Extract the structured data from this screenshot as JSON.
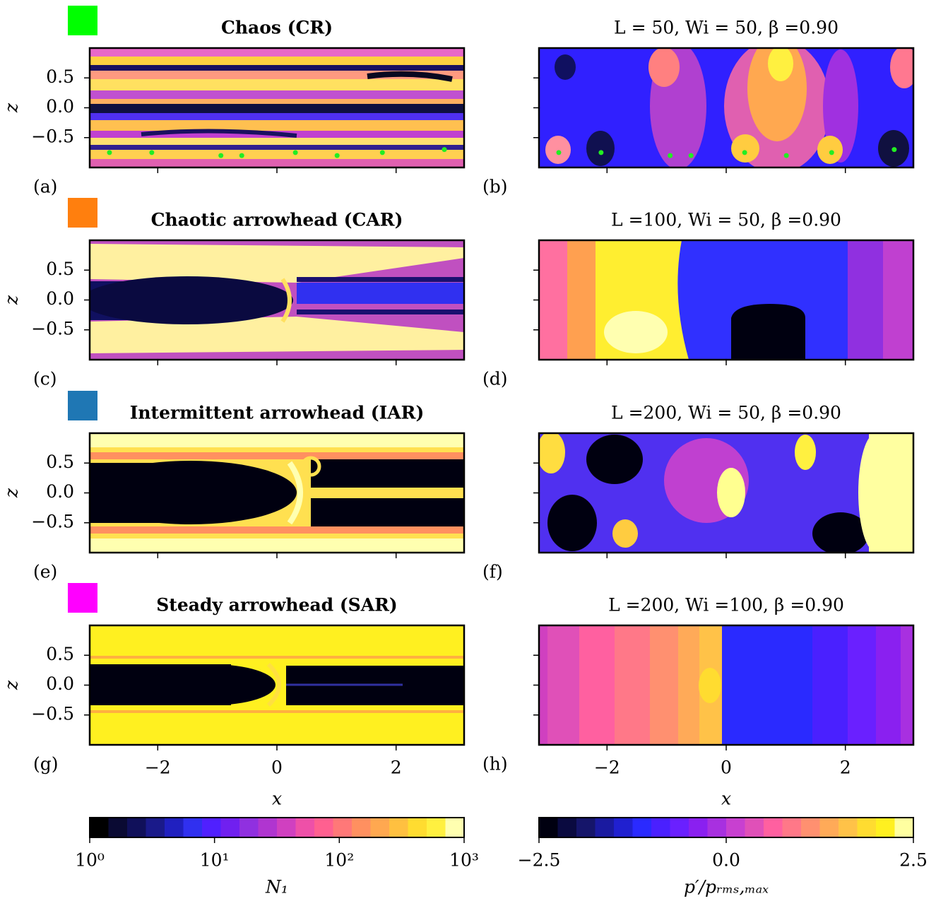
{
  "chart_data": [
    {
      "type": "contour",
      "title": "Chaos (CR)",
      "label": "(a)",
      "regime_color": "#00ff00",
      "ylabel": "z",
      "xlim": [
        -3.1416,
        3.1416
      ],
      "ylim": [
        -1,
        1
      ],
      "xticks": [
        {
          "value": -2,
          "label": "−2"
        },
        0,
        2
      ],
      "yticks": [
        {
          "value": -0.5,
          "label": "−0.5"
        },
        {
          "value": 0,
          "label": "0.0"
        },
        0.5
      ],
      "xtick_labels": false,
      "ytick_labels": true,
      "points": {
        "x": [
          -2.81,
          -2.1,
          -0.94,
          -0.59,
          0.31,
          1.01,
          1.77,
          2.81
        ],
        "y": [
          -0.75,
          -0.75,
          -0.8,
          -0.8,
          -0.75,
          -0.8,
          -0.75,
          -0.7
        ],
        "color": "#22ee22"
      }
    },
    {
      "type": "contour",
      "title": "L = 50, Wi = 50, β =0.90",
      "label": "(b)",
      "xlim": [
        -3.1416,
        3.1416
      ],
      "ylim": [
        -1,
        1
      ],
      "xticks": [
        {
          "value": -2,
          "label": "−2"
        },
        0,
        2
      ],
      "yticks": [
        {
          "value": -0.5,
          "label": "−0.5"
        },
        {
          "value": 0,
          "label": "0.0"
        },
        0.5
      ],
      "xtick_labels": false,
      "ytick_labels": false,
      "points": {
        "x": [
          -2.81,
          -2.1,
          -0.94,
          -0.59,
          0.31,
          1.01,
          1.77,
          2.82
        ],
        "y": [
          -0.75,
          -0.75,
          -0.8,
          -0.8,
          -0.75,
          -0.8,
          -0.75,
          -0.7
        ],
        "color": "#22ee22"
      }
    },
    {
      "type": "contour",
      "title": "Chaotic arrowhead (CAR)",
      "label": "(c)",
      "regime_color": "#ff7f0e",
      "ylabel": "z",
      "xlim": [
        -3.1416,
        3.1416
      ],
      "ylim": [
        -1,
        1
      ],
      "xticks": [
        {
          "value": -2,
          "label": "−2"
        },
        0,
        2
      ],
      "yticks": [
        {
          "value": -0.5,
          "label": "−0.5"
        },
        {
          "value": 0,
          "label": "0.0"
        },
        0.5
      ],
      "xtick_labels": false,
      "ytick_labels": true
    },
    {
      "type": "contour",
      "title": "L =100, Wi = 50, β =0.90",
      "label": "(d)",
      "xlim": [
        -3.1416,
        3.1416
      ],
      "ylim": [
        -1,
        1
      ],
      "xticks": [
        {
          "value": -2,
          "label": "−2"
        },
        0,
        2
      ],
      "yticks": [
        {
          "value": -0.5,
          "label": "−0.5"
        },
        {
          "value": 0,
          "label": "0.0"
        },
        0.5
      ],
      "xtick_labels": false,
      "ytick_labels": false
    },
    {
      "type": "contour",
      "title": "Intermittent arrowhead (IAR)",
      "label": "(e)",
      "regime_color": "#1f77b4",
      "ylabel": "z",
      "xlim": [
        -3.1416,
        3.1416
      ],
      "ylim": [
        -1,
        1
      ],
      "xticks": [
        {
          "value": -2,
          "label": "−2"
        },
        0,
        2
      ],
      "yticks": [
        {
          "value": -0.5,
          "label": "−0.5"
        },
        {
          "value": 0,
          "label": "0.0"
        },
        0.5
      ],
      "xtick_labels": false,
      "ytick_labels": true
    },
    {
      "type": "contour",
      "title": "L =200, Wi = 50, β =0.90",
      "label": "(f)",
      "xlim": [
        -3.1416,
        3.1416
      ],
      "ylim": [
        -1,
        1
      ],
      "xticks": [
        {
          "value": -2,
          "label": "−2"
        },
        0,
        2
      ],
      "yticks": [
        {
          "value": -0.5,
          "label": "−0.5"
        },
        {
          "value": 0,
          "label": "0.0"
        },
        0.5
      ],
      "xtick_labels": false,
      "ytick_labels": false
    },
    {
      "type": "contour",
      "title": "Steady arrowhead (SAR)",
      "label": "(g)",
      "regime_color": "#ff00ff",
      "ylabel": "z",
      "xlabel": "x",
      "xlim": [
        -3.1416,
        3.1416
      ],
      "ylim": [
        -1,
        1
      ],
      "xticks": [
        {
          "value": -2,
          "label": "−2"
        },
        0,
        2
      ],
      "yticks": [
        {
          "value": -0.5,
          "label": "−0.5"
        },
        {
          "value": 0,
          "label": "0.0"
        },
        0.5
      ],
      "xtick_labels": true,
      "ytick_labels": true
    },
    {
      "type": "contour",
      "title": "L =200, Wi =100, β =0.90",
      "label": "(h)",
      "xlabel": "x",
      "xlim": [
        -3.1416,
        3.1416
      ],
      "ylim": [
        -1,
        1
      ],
      "xticks": [
        {
          "value": -2,
          "label": "−2"
        },
        0,
        2
      ],
      "yticks": [
        {
          "value": -0.5,
          "label": "−0.5"
        },
        {
          "value": 0,
          "label": "0.0"
        },
        0.5
      ],
      "xtick_labels": true,
      "ytick_labels": false
    },
    {
      "type": "colorbar",
      "label": "N₁",
      "log": true,
      "lim": [
        1,
        1000
      ],
      "ticks": [
        {
          "value": 1,
          "label": "10⁰"
        },
        {
          "value": 10,
          "label": "10¹"
        },
        {
          "value": 100,
          "label": "10²"
        },
        {
          "value": 1000,
          "label": "10³"
        }
      ],
      "colors": [
        "#000000",
        "#0a0a33",
        "#10105a",
        "#1a1a8a",
        "#2020c0",
        "#3030f0",
        "#5020ff",
        "#7020f0",
        "#9030e0",
        "#b035d0",
        "#d040c0",
        "#ee50a8",
        "#ff6090",
        "#ff7878",
        "#ff9060",
        "#ffa850",
        "#ffc040",
        "#ffdc30",
        "#fff040",
        "#ffffb0"
      ]
    },
    {
      "type": "colorbar",
      "label": "p′/pᵣₘₛ,ₘₐₓ",
      "log": false,
      "lim": [
        -2.5,
        2.5
      ],
      "ticks": [
        {
          "value": -2.5,
          "label": "−2.5"
        },
        {
          "value": 0,
          "label": "0.0"
        },
        2.5
      ],
      "colors": [
        "#000010",
        "#0a0a40",
        "#15156a",
        "#1a1aa0",
        "#2020d0",
        "#2a2aff",
        "#4a20ff",
        "#6a20ff",
        "#8a20f0",
        "#a830e0",
        "#c840d0",
        "#e050b8",
        "#ff60a0",
        "#ff7888",
        "#ff9070",
        "#ffaa58",
        "#ffc248",
        "#ffdc30",
        "#fff020",
        "#ffffa0"
      ]
    }
  ]
}
